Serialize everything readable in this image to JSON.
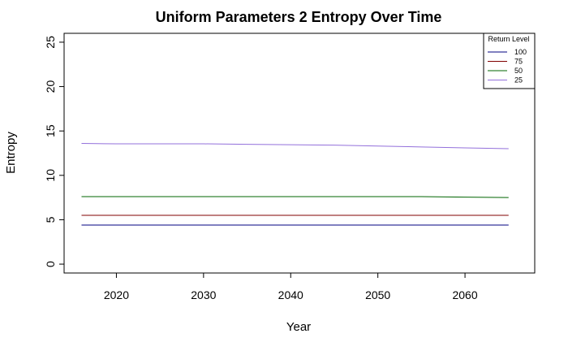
{
  "chart_data": {
    "type": "line",
    "title": "Uniform Parameters 2 Entropy Over Time",
    "xlabel": "Year",
    "ylabel": "Entropy",
    "xlim": [
      2014,
      2068
    ],
    "ylim": [
      -1.0,
      26.0
    ],
    "xticks": [
      2020,
      2030,
      2040,
      2050,
      2060
    ],
    "yticks": [
      0,
      5,
      10,
      15,
      20,
      25
    ],
    "grid": false,
    "legend": {
      "title": "Return Level",
      "position": "top-right"
    },
    "x": [
      2016,
      2020,
      2025,
      2030,
      2035,
      2040,
      2045,
      2050,
      2055,
      2060,
      2065
    ],
    "series": [
      {
        "name": "100",
        "color": "#000080",
        "values": [
          4.4,
          4.4,
          4.4,
          4.4,
          4.4,
          4.4,
          4.4,
          4.4,
          4.4,
          4.4,
          4.4
        ]
      },
      {
        "name": "75",
        "color": "#800000",
        "values": [
          5.5,
          5.5,
          5.5,
          5.5,
          5.5,
          5.5,
          5.5,
          5.5,
          5.5,
          5.5,
          5.5
        ]
      },
      {
        "name": "50",
        "color": "#006400",
        "values": [
          7.6,
          7.6,
          7.6,
          7.6,
          7.6,
          7.6,
          7.6,
          7.6,
          7.6,
          7.55,
          7.5
        ]
      },
      {
        "name": "25",
        "color": "#9370DB",
        "values": [
          13.6,
          13.55,
          13.55,
          13.55,
          13.5,
          13.45,
          13.4,
          13.3,
          13.2,
          13.1,
          13.0
        ]
      }
    ]
  }
}
